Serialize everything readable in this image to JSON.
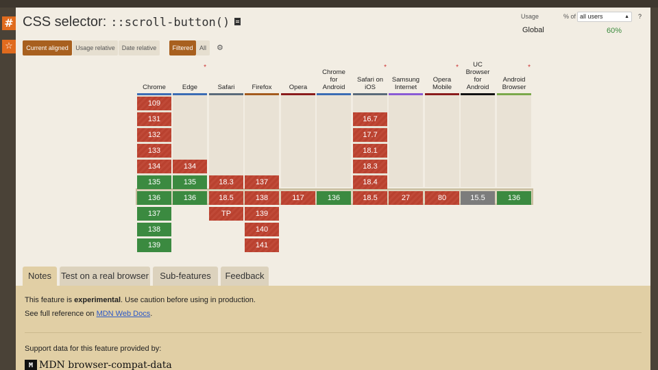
{
  "sidebar": {
    "hash_icon": "#",
    "star_icon": "☆"
  },
  "title": {
    "prefix": "CSS selector:",
    "code": "::scroll-button()"
  },
  "usage": {
    "label": "Usage",
    "pct_label": "% of",
    "selected": "all users",
    "help": "?",
    "region": "Global",
    "value": "60%"
  },
  "toggles": {
    "current_aligned": "Current aligned",
    "usage_relative": "Usage relative",
    "date_relative": "Date relative",
    "filtered": "Filtered",
    "all": "All"
  },
  "browsers": [
    {
      "name": "Chrome",
      "color": "#3b6cb4"
    },
    {
      "name": "Edge",
      "color": "#3b6cb4",
      "note": "*"
    },
    {
      "name": "Safari",
      "color": "#5a6a7a"
    },
    {
      "name": "Firefox",
      "color": "#a45a1c"
    },
    {
      "name": "Opera",
      "color": "#8a1b1b"
    },
    {
      "name": "Chrome for Android",
      "color": "#3b6cb4"
    },
    {
      "name": "Safari on iOS",
      "color": "#5a6a7a",
      "note": "*"
    },
    {
      "name": "Samsung Internet",
      "color": "#8a5ad4"
    },
    {
      "name": "Opera Mobile",
      "color": "#8a1b1b",
      "note": "*"
    },
    {
      "name": "UC Browser for Android",
      "color": "#111111"
    },
    {
      "name": "Android Browser",
      "color": "#7aa84a",
      "note": "*"
    }
  ],
  "support": {
    "chrome": [
      [
        "109",
        "r"
      ],
      [
        "131",
        "r"
      ],
      [
        "132",
        "r"
      ],
      [
        "133",
        "r"
      ],
      [
        "134",
        "r"
      ],
      [
        "135",
        "g"
      ],
      [
        "136",
        "g"
      ],
      [
        "137",
        "g"
      ],
      [
        "138",
        "g"
      ],
      [
        "139",
        "g"
      ]
    ],
    "edge": [
      [
        "134",
        "r"
      ],
      [
        "135",
        "g"
      ],
      [
        "136",
        "g"
      ]
    ],
    "safari": [
      [
        "18.3",
        "r"
      ],
      [
        "18.5",
        "r"
      ],
      [
        "TP",
        "r"
      ]
    ],
    "firefox": [
      [
        "137",
        "r"
      ],
      [
        "138",
        "r"
      ],
      [
        "139",
        "r"
      ],
      [
        "140",
        "r"
      ],
      [
        "141",
        "r"
      ]
    ],
    "opera": [
      [
        "117",
        "r"
      ]
    ],
    "chrome_android": [
      [
        "136",
        "g"
      ]
    ],
    "ios": [
      [
        "16.7",
        "r"
      ],
      [
        "17.7",
        "r"
      ],
      [
        "18.1",
        "r"
      ],
      [
        "18.3",
        "r"
      ],
      [
        "18.4",
        "r"
      ],
      [
        "18.5",
        "r"
      ]
    ],
    "samsung": [
      [
        "27",
        "r"
      ]
    ],
    "opera_mobile": [
      [
        "80",
        "r"
      ]
    ],
    "uc": [
      [
        "15.5",
        "x"
      ]
    ],
    "android": [
      [
        "136",
        "g"
      ]
    ]
  },
  "tabs": [
    "Notes",
    "Test on a real browser",
    "Sub-features",
    "Feedback"
  ],
  "notes": {
    "line1_pre": "This feature is ",
    "line1_bold": "experimental",
    "line1_post": ". Use caution before using in production.",
    "line2_pre": "See full reference on ",
    "line2_link": "MDN Web Docs",
    "line2_post": ".",
    "support_by": "Support data for this feature provided by:",
    "mdn_logo": "M",
    "mdn_name": "MDN browser-compat-data"
  }
}
